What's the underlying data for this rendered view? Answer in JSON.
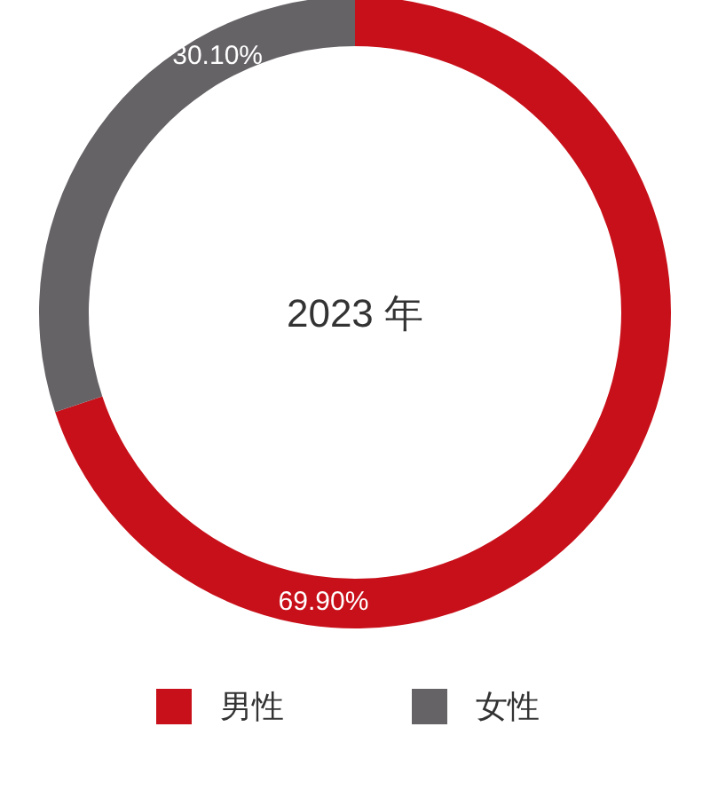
{
  "chart_data": {
    "type": "donut",
    "title": "2023 年",
    "categories": [
      "男性",
      "女性"
    ],
    "values": [
      69.9,
      30.1
    ],
    "colors": [
      "#c8101a",
      "#666366"
    ],
    "value_labels": [
      "69.90%",
      "30.10%"
    ],
    "legend": "bottom"
  }
}
